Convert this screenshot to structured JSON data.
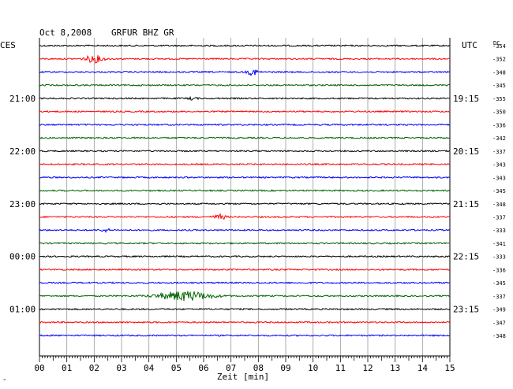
{
  "header": {
    "date": "Oct 8,2008",
    "station": "GRFUR BHZ GR",
    "left_zone": "CES",
    "right_zone": "UTC",
    "dc_label": "DC"
  },
  "chart_data": {
    "type": "line",
    "title": "Oct 8,2008   GRFUR BHZ GR",
    "xlabel": "Zeit [min]",
    "xlim": [
      0,
      15
    ],
    "x_ticks": [
      "00",
      "01",
      "02",
      "03",
      "04",
      "05",
      "06",
      "07",
      "08",
      "09",
      "10",
      "11",
      "12",
      "13",
      "14",
      "15"
    ],
    "trace_interval_min": 15,
    "left_time_labels": [
      {
        "trace": 4,
        "label": "21:00"
      },
      {
        "trace": 8,
        "label": "22:00"
      },
      {
        "trace": 12,
        "label": "23:00"
      },
      {
        "trace": 16,
        "label": "00:00"
      },
      {
        "trace": 20,
        "label": "01:00"
      }
    ],
    "right_time_labels": [
      {
        "trace": 4,
        "label": "19:15"
      },
      {
        "trace": 8,
        "label": "20:15"
      },
      {
        "trace": 12,
        "label": "21:15"
      },
      {
        "trace": 16,
        "label": "22:15"
      },
      {
        "trace": 20,
        "label": "23:15"
      }
    ],
    "dc_offsets": [
      -354,
      -352,
      -348,
      -345,
      -355,
      -350,
      -336,
      -342,
      -337,
      -343,
      -343,
      -345,
      -348,
      -337,
      -333,
      -341,
      -333,
      -336,
      -345,
      -337,
      -349,
      -347,
      -348
    ],
    "trace_colors": [
      "#000000",
      "#ff0000",
      "#0000ff",
      "#006400"
    ],
    "events": [
      {
        "trace": 1,
        "minute": 2.0,
        "width_min": 0.9,
        "amp": 4.5
      },
      {
        "trace": 2,
        "minute": 7.8,
        "width_min": 0.5,
        "amp": 4
      },
      {
        "trace": 4,
        "minute": 5.6,
        "width_min": 0.4,
        "amp": 1.6
      },
      {
        "trace": 13,
        "minute": 6.6,
        "width_min": 0.6,
        "amp": 3
      },
      {
        "trace": 14,
        "minute": 2.4,
        "width_min": 0.5,
        "amp": 1.8
      },
      {
        "trace": 19,
        "minute": 5.3,
        "width_min": 2.6,
        "amp": 6
      }
    ],
    "grid": true
  }
}
